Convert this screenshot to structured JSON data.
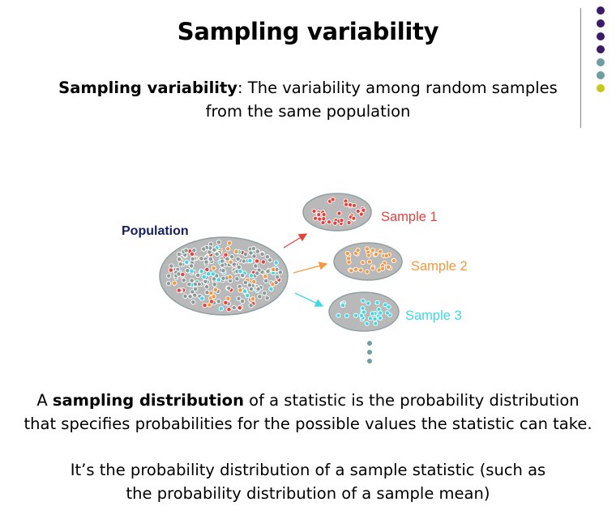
{
  "title": "Sampling variability",
  "definition": {
    "term": "Sampling variability",
    "separator": ":",
    "text_line1": " The variability among random samples",
    "text_line2": "from the same population"
  },
  "decoration": {
    "dots": [
      "#3b1a66",
      "#3b1a66",
      "#3b1a66",
      "#3b1a66",
      "#6f9da0",
      "#6f9da0",
      "#c8c81a"
    ]
  },
  "diagram": {
    "population_label": "Population",
    "samples": [
      {
        "label": "Sample 1",
        "color": "#e8413c"
      },
      {
        "label": "Sample 2",
        "color": "#f5973d"
      },
      {
        "label": "Sample 3",
        "color": "#3fd8e6"
      }
    ],
    "population_label_color": "#15205e",
    "ellipse_fill": "#b9b9b9",
    "ellipse_stroke": "#8fa0a0",
    "neutral_dot_color": "#8c9a99",
    "continuation_dot_color": "#6f9da0"
  },
  "paragraph1": {
    "prefix": "A ",
    "bold": "sampling distribution",
    "rest_line1": " of a statistic is the probability distribution",
    "line2": "that specifies probabilities for the possible values the statistic can take."
  },
  "paragraph2": {
    "line1": "It’s the probability distribution of a sample statistic (such as",
    "line2": "the probability distribution of a sample mean)"
  }
}
